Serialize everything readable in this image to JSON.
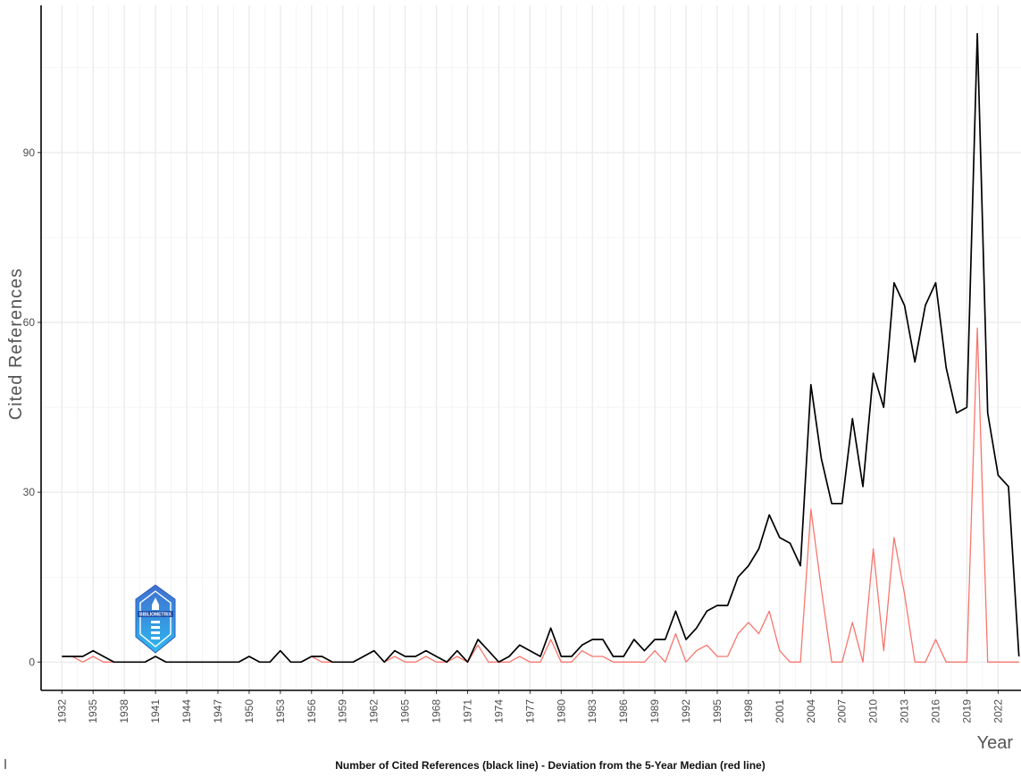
{
  "chart_data": {
    "type": "line",
    "title": "",
    "caption": "Number of Cited References (black line) - Deviation from the 5-Year Median (red line)",
    "xlabel": "Year",
    "ylabel": "Cited References",
    "x": [
      1932,
      1933,
      1934,
      1935,
      1936,
      1937,
      1938,
      1939,
      1940,
      1941,
      1942,
      1943,
      1944,
      1945,
      1946,
      1947,
      1948,
      1949,
      1950,
      1951,
      1952,
      1953,
      1954,
      1955,
      1956,
      1957,
      1958,
      1959,
      1960,
      1961,
      1962,
      1963,
      1964,
      1965,
      1966,
      1967,
      1968,
      1969,
      1970,
      1971,
      1972,
      1973,
      1974,
      1975,
      1976,
      1977,
      1978,
      1979,
      1980,
      1981,
      1982,
      1983,
      1984,
      1985,
      1986,
      1987,
      1988,
      1989,
      1990,
      1991,
      1992,
      1993,
      1994,
      1995,
      1996,
      1997,
      1998,
      1999,
      2000,
      2001,
      2002,
      2003,
      2004,
      2005,
      2006,
      2007,
      2008,
      2009,
      2010,
      2011,
      2012,
      2013,
      2014,
      2015,
      2016,
      2017,
      2018,
      2019,
      2020,
      2021,
      2022,
      2023,
      2024
    ],
    "xticks": [
      1932,
      1935,
      1938,
      1941,
      1944,
      1947,
      1950,
      1953,
      1956,
      1959,
      1962,
      1965,
      1968,
      1971,
      1974,
      1977,
      1980,
      1983,
      1986,
      1989,
      1992,
      1995,
      1998,
      2001,
      2004,
      2007,
      2010,
      2013,
      2016,
      2019,
      2022
    ],
    "yticks": [
      0,
      30,
      60,
      90
    ],
    "ylim": [
      -5,
      116
    ],
    "xlim": [
      1930,
      2024.2
    ],
    "grid": true,
    "legend": "none",
    "series": [
      {
        "color": "#000000",
        "values": [
          1,
          1,
          1,
          2,
          1,
          0,
          0,
          0,
          0,
          1,
          0,
          0,
          0,
          0,
          0,
          0,
          0,
          0,
          1,
          0,
          0,
          2,
          0,
          0,
          1,
          1,
          0,
          0,
          0,
          1,
          2,
          0,
          2,
          1,
          1,
          2,
          1,
          0,
          2,
          0,
          4,
          2,
          0,
          1,
          3,
          2,
          1,
          6,
          1,
          1,
          3,
          4,
          4,
          1,
          1,
          4,
          2,
          4,
          4,
          9,
          4,
          6,
          9,
          10,
          10,
          15,
          17,
          20,
          26,
          22,
          21,
          17,
          49,
          36,
          28,
          28,
          43,
          31,
          51,
          45,
          67,
          63,
          53,
          63,
          67,
          52,
          44,
          45,
          111,
          44,
          33,
          31,
          1
        ]
      },
      {
        "color": "#f8766d",
        "values": [
          1,
          1,
          0,
          1,
          0,
          0,
          0,
          0,
          0,
          1,
          0,
          0,
          0,
          0,
          0,
          0,
          0,
          0,
          1,
          0,
          0,
          2,
          0,
          0,
          1,
          0,
          0,
          0,
          0,
          1,
          2,
          0,
          1,
          0,
          0,
          1,
          0,
          0,
          1,
          0,
          3,
          0,
          0,
          0,
          1,
          0,
          0,
          4,
          0,
          0,
          2,
          1,
          1,
          0,
          0,
          0,
          0,
          2,
          0,
          5,
          0,
          2,
          3,
          1,
          1,
          5,
          7,
          5,
          9,
          2,
          0,
          0,
          27,
          13,
          0,
          0,
          7,
          0,
          20,
          2,
          22,
          12,
          0,
          0,
          4,
          0,
          0,
          0,
          59,
          0,
          0,
          0,
          0
        ]
      }
    ]
  },
  "logo": {
    "text": "BIBLIOMETRIX"
  }
}
